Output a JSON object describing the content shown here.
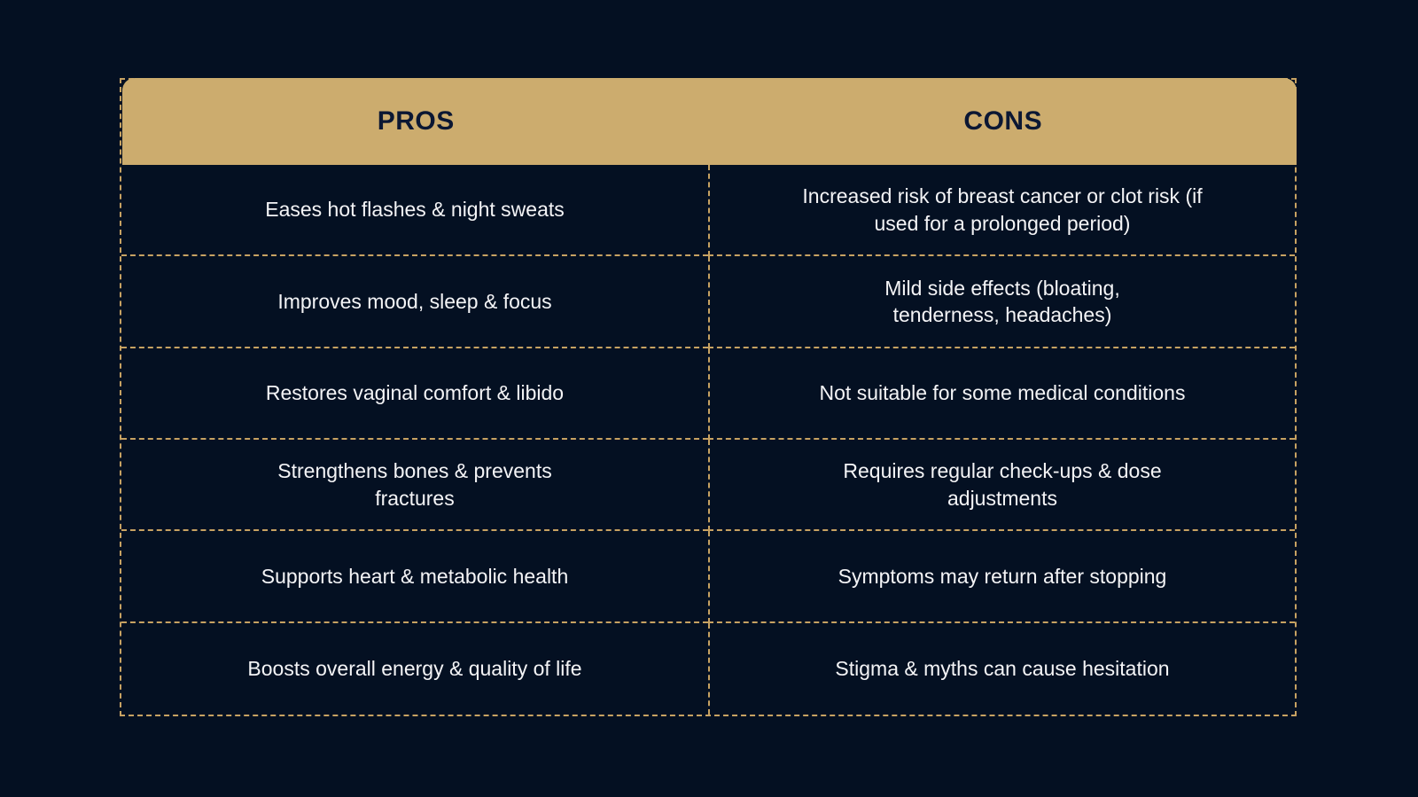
{
  "chart_data": {
    "type": "table",
    "columns": [
      "PROS",
      "CONS"
    ],
    "rows": [
      [
        "Eases hot flashes & night sweats",
        "Increased risk of breast cancer or clot risk (if\nused for a prolonged period)"
      ],
      [
        "Improves mood, sleep & focus",
        "Mild side effects (bloating,\ntenderness, headaches)"
      ],
      [
        "Restores vaginal comfort & libido",
        "Not suitable for some medical conditions"
      ],
      [
        "Strengthens bones & prevents\nfractures",
        "Requires regular check-ups & dose\nadjustments"
      ],
      [
        "Supports heart & metabolic health",
        "Symptoms may return after stopping"
      ],
      [
        "Boosts overall energy & quality of life",
        "Stigma & myths can cause hesitation"
      ]
    ],
    "title": "",
    "layout": {
      "legend": "none",
      "grid": "dashed-cell-borders",
      "header_position": "top"
    }
  },
  "colors": {
    "background": "#041022",
    "header_fill": "#CCAC6E",
    "header_text": "#0B1733",
    "body_text": "#F4F4F6",
    "dashed_border": "#C7A262"
  }
}
